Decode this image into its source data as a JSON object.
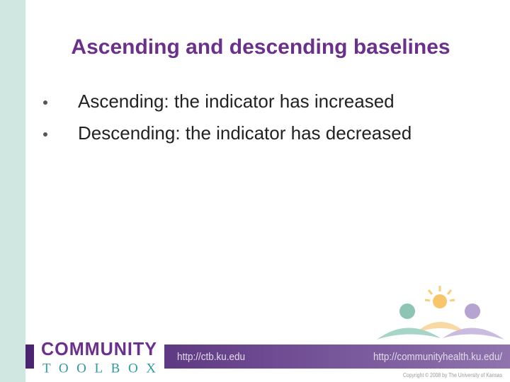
{
  "title": "Ascending and descending baselines",
  "bullets": [
    "Ascending: the indicator has increased",
    "Descending: the indicator has decreased"
  ],
  "footer": {
    "logo_top": "COMMUNITY",
    "logo_bottom": "TOOLBOX",
    "url_left": "http://ctb.ku.edu",
    "url_right": "http://communityhealth.ku.edu/",
    "copyright": "Copyright © 2008 by The University of Kansas"
  }
}
